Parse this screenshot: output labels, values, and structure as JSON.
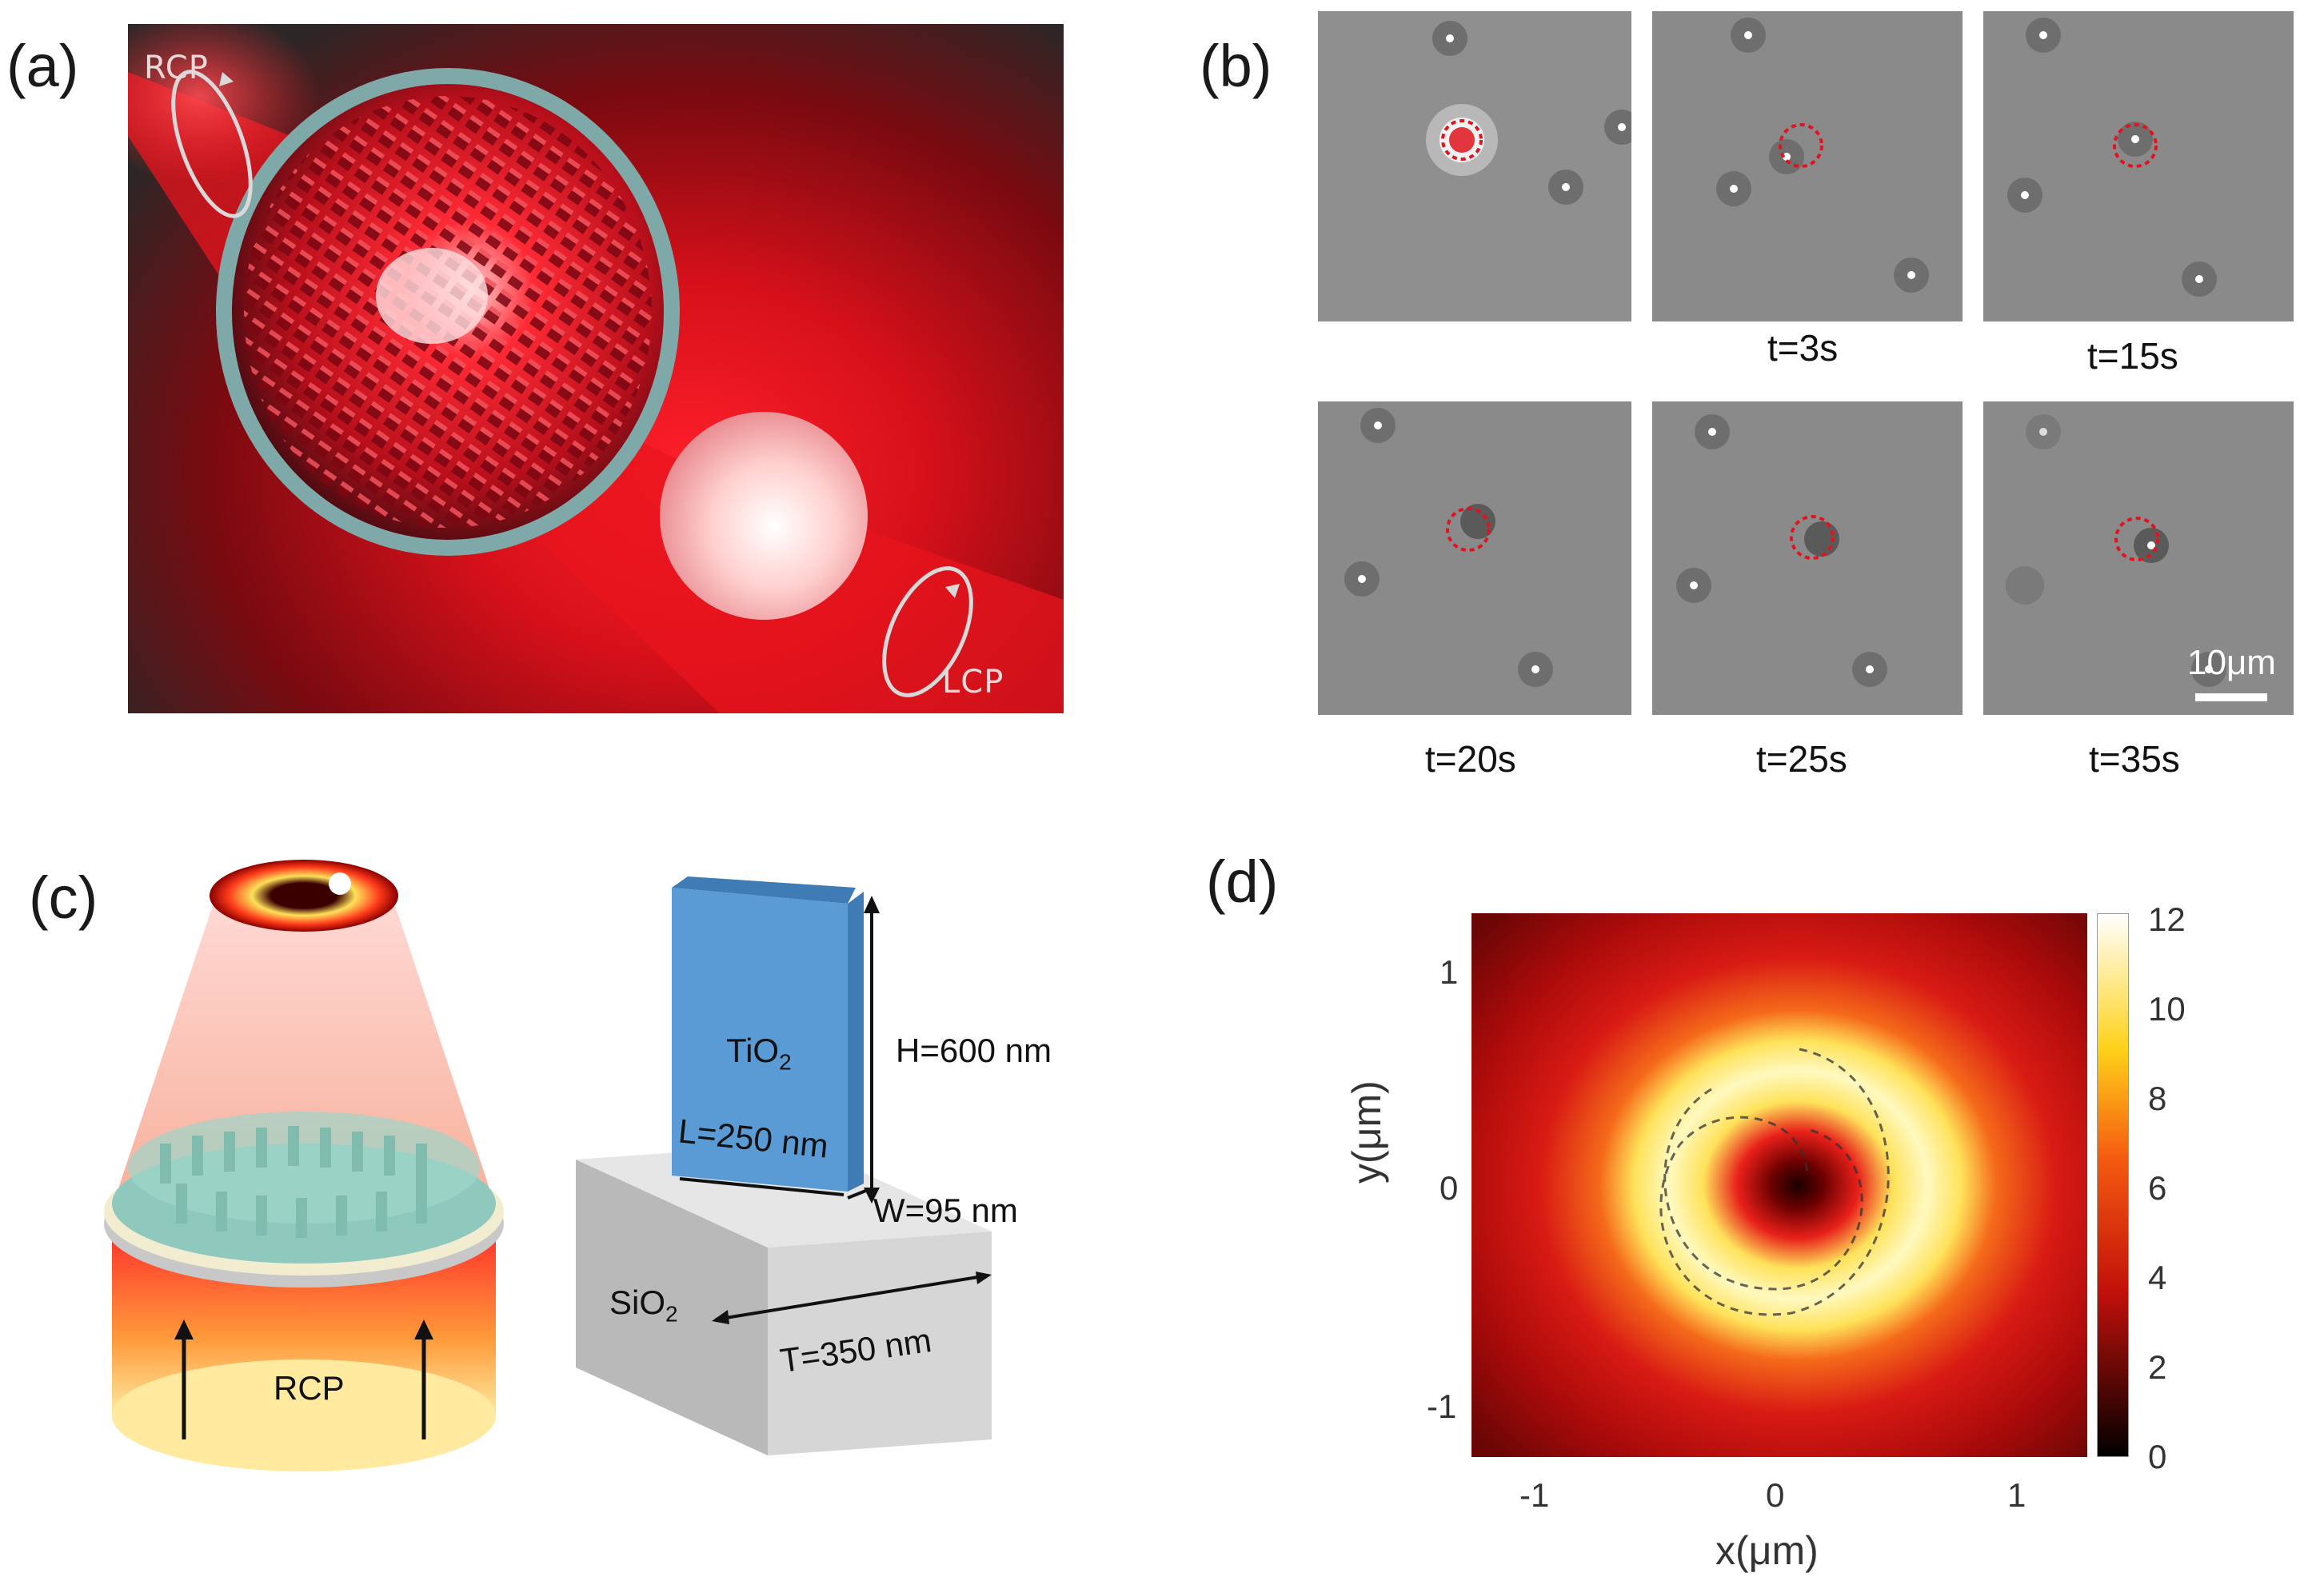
{
  "panels": {
    "a": {
      "label": "(a)",
      "rcp": "RCP",
      "lcp": "LCP"
    },
    "b": {
      "label": "(b)",
      "frames": [
        {
          "time": ""
        },
        {
          "time": "t=3s"
        },
        {
          "time": "t=15s"
        },
        {
          "time": "t=20s"
        },
        {
          "time": "t=25s"
        },
        {
          "time": "t=35s"
        }
      ],
      "scale_bar": "10μm"
    },
    "c": {
      "label": "(c)",
      "rcp": "RCP",
      "material_top": "TiO",
      "material_top_sub": "2",
      "material_bottom": "SiO",
      "material_bottom_sub": "2",
      "height": "H=600 nm",
      "length": "L=250 nm",
      "width": "W=95 nm",
      "thickness": "T=350 nm"
    },
    "d": {
      "label": "(d)",
      "xlabel": "x(μm)",
      "ylabel": "y(μm)",
      "xticks": [
        "-1",
        "0",
        "1"
      ],
      "yticks": [
        "1",
        "0",
        "-1"
      ],
      "colorbar_ticks": [
        "12",
        "10",
        "8",
        "6",
        "4",
        "2",
        "0"
      ]
    }
  },
  "colors": {
    "laser_red": "#ff1f2a",
    "metasurface": "#8fc9bd",
    "pillar": "#5b9bd5",
    "frame_gray": "#8a8a8a",
    "marker": "#e0141e"
  }
}
